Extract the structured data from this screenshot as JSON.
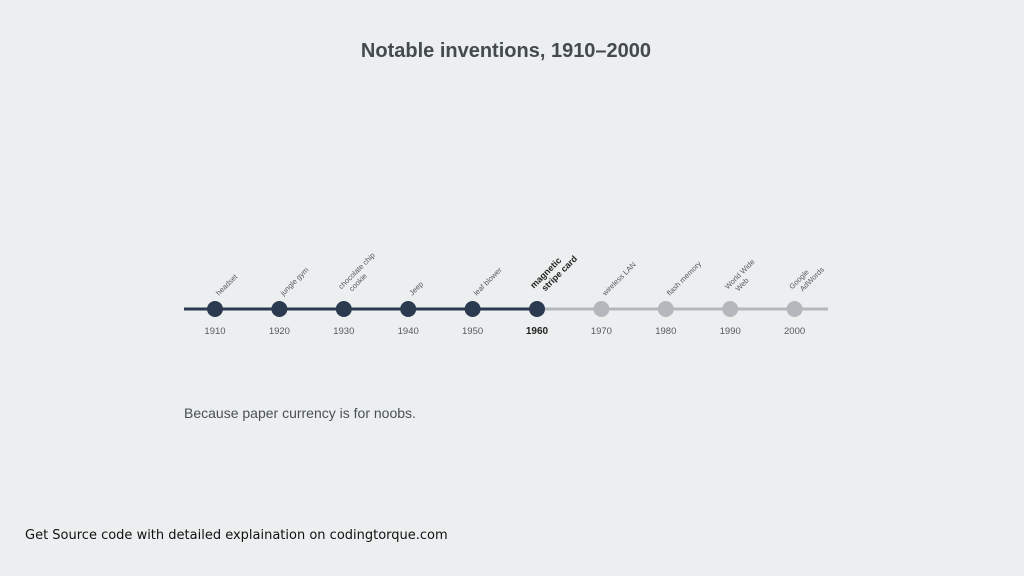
{
  "title": "Notable inventions, 1910–2000",
  "timeline": {
    "active_index": 5,
    "colors": {
      "active": "#2c3a4f",
      "inactive": "#b4b8bc",
      "text": "#555a5e"
    },
    "events": [
      {
        "year": "1910",
        "label": [
          "headset"
        ]
      },
      {
        "year": "1920",
        "label": [
          "jungle gym"
        ]
      },
      {
        "year": "1930",
        "label": [
          "chocolate chip",
          "cookie"
        ]
      },
      {
        "year": "1940",
        "label": [
          "Jeep"
        ]
      },
      {
        "year": "1950",
        "label": [
          "leaf blower"
        ]
      },
      {
        "year": "1960",
        "label": [
          "magnetic",
          "stripe card"
        ]
      },
      {
        "year": "1970",
        "label": [
          "wireless LAN"
        ]
      },
      {
        "year": "1980",
        "label": [
          "flash memory"
        ]
      },
      {
        "year": "1990",
        "label": [
          "World Wide",
          "Web"
        ]
      },
      {
        "year": "2000",
        "label": [
          "Google",
          "AdWords"
        ]
      }
    ]
  },
  "caption": "Because paper currency is for noobs.",
  "footer": "Get Source code with detailed explaination on codingtorque.com"
}
